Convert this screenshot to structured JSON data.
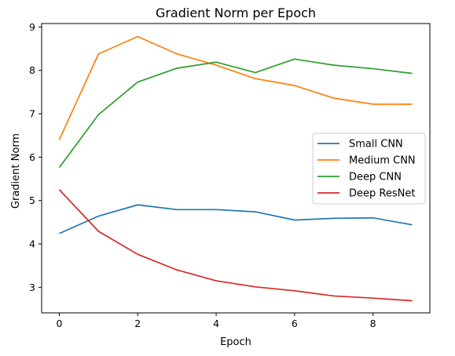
{
  "chart_data": {
    "type": "line",
    "title": "Gradient Norm per Epoch",
    "xlabel": "Epoch",
    "ylabel": "Gradient Norm",
    "x": [
      0,
      1,
      2,
      3,
      4,
      5,
      6,
      7,
      8,
      9
    ],
    "xlim": [
      -0.45,
      9.45
    ],
    "ylim": [
      2.41,
      9.08
    ],
    "xticks": [
      0,
      2,
      4,
      6,
      8
    ],
    "yticks": [
      3,
      4,
      5,
      6,
      7,
      8,
      9
    ],
    "grid": false,
    "legend_position": "center-right",
    "series": [
      {
        "name": "Small CNN",
        "color": "#1f77b4",
        "values": [
          4.24,
          4.64,
          4.9,
          4.79,
          4.79,
          4.74,
          4.55,
          4.59,
          4.6,
          4.44
        ]
      },
      {
        "name": "Medium CNN",
        "color": "#ff7f0e",
        "values": [
          6.4,
          8.38,
          8.78,
          8.38,
          8.12,
          7.81,
          7.65,
          7.36,
          7.22,
          7.22
        ]
      },
      {
        "name": "Deep CNN",
        "color": "#2ca02c",
        "values": [
          5.76,
          6.98,
          7.73,
          8.05,
          8.19,
          7.95,
          8.26,
          8.12,
          8.04,
          7.93
        ]
      },
      {
        "name": "Deep ResNet",
        "color": "#d62728",
        "values": [
          5.25,
          4.29,
          3.76,
          3.4,
          3.15,
          3.01,
          2.92,
          2.8,
          2.75,
          2.69
        ]
      }
    ]
  }
}
